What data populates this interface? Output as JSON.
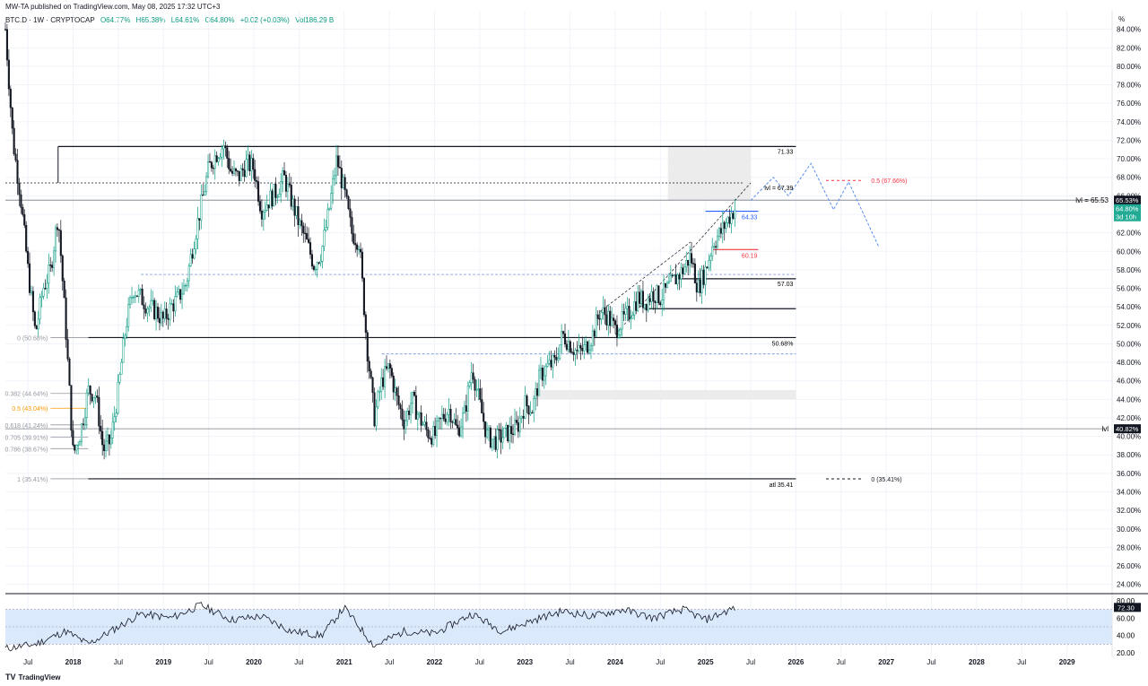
{
  "header": {
    "published": "MW-TA published on TradingView.com, May 08, 2025 17:32 UTC+3"
  },
  "legend": {
    "symbol": "BTC.D · 1W · CRYPTOCAP",
    "open": "O64.77%",
    "high": "H65.38%",
    "low": "L64.61%",
    "close": "C64.80%",
    "change": "+0.02 (+0.03%)",
    "volume": "Vol186.29 B"
  },
  "footer": {
    "brand": "TradingView",
    "logo": "TV"
  },
  "colors": {
    "up": "#089981",
    "down": "#131722",
    "level": "#131722",
    "fib": "#787b86",
    "blue_line": "#2962ff",
    "red_line": "#f23645",
    "rsi_band": "#dbe9fd",
    "rsi_line": "#131722",
    "price_badge": "#22ab94"
  },
  "price_scale": {
    "unit_label": "%",
    "labels": [
      "84.00%",
      "82.00%",
      "80.00%",
      "78.00%",
      "76.00%",
      "74.00%",
      "72.00%",
      "70.00%",
      "68.00%",
      "66.00%",
      "64.00%",
      "62.00%",
      "60.00%",
      "58.00%",
      "56.00%",
      "54.00%",
      "52.00%",
      "50.00%",
      "48.00%",
      "46.00%",
      "44.00%",
      "42.00%",
      "40.00%",
      "38.00%",
      "36.00%",
      "34.00%",
      "32.00%",
      "30.00%",
      "28.00%",
      "26.00%",
      "24.00%"
    ],
    "badge_current_level": "65.53%",
    "badge_price": "64.80%",
    "badge_countdown": "3d 10h",
    "badge_lvl": "40.82%"
  },
  "time_axis": {
    "labels": [
      "Jul",
      "2018",
      "Jul",
      "2019",
      "Jul",
      "2020",
      "Jul",
      "2021",
      "Jul",
      "2022",
      "Jul",
      "2023",
      "Jul",
      "2024",
      "Jul",
      "2025",
      "Jul",
      "2026",
      "Jul",
      "2027",
      "Jul",
      "2028",
      "Jul",
      "2029"
    ]
  },
  "annotations": {
    "lvl_top": "lvl = 65.53",
    "lvl_bottom": "lvl",
    "lvl_6739": "lvl = 67.39",
    "level_7133": "71.33",
    "level_5703": "57.03",
    "level_5068": "50.68%",
    "level_atl": "atl 35.41",
    "blue_6433": "64.33",
    "red_6019": "60.19",
    "fib_05_right": "0.5 (67.66%)",
    "fib_0_right": "0 (35.41%)",
    "fib_left": [
      "0 (50.68%)",
      "0.382 (44.64%)",
      "0.5 (43.04%)",
      "0.618 (41.24%)",
      "0.705 (39.91%)",
      "0.786 (38.67%)",
      "1 (35.41%)"
    ]
  },
  "rsi": {
    "labels": [
      "80.00",
      "60.00",
      "40.00",
      "20.00"
    ],
    "current": "72.30",
    "band": [
      30,
      70
    ]
  },
  "chart_data": {
    "type": "candlestick",
    "symbol": "BTC.D",
    "timeframe": "1W",
    "ylim": [
      23,
      86
    ],
    "yscale": "linear",
    "x_range": [
      "2017-04",
      "2029-06"
    ],
    "weekly_close_anchors": [
      {
        "date": "2017-04",
        "value": 84.0
      },
      {
        "date": "2017-05",
        "value": 72.0
      },
      {
        "date": "2017-06",
        "value": 66.0
      },
      {
        "date": "2017-07",
        "value": 58.0
      },
      {
        "date": "2017-08",
        "value": 51.0
      },
      {
        "date": "2017-09",
        "value": 56.0
      },
      {
        "date": "2017-10",
        "value": 58.0
      },
      {
        "date": "2017-11",
        "value": 64.0
      },
      {
        "date": "2017-12",
        "value": 52.0
      },
      {
        "date": "2018-01",
        "value": 38.0
      },
      {
        "date": "2018-02",
        "value": 40.5
      },
      {
        "date": "2018-03",
        "value": 45.0
      },
      {
        "date": "2018-04",
        "value": 44.5
      },
      {
        "date": "2018-05",
        "value": 38.5
      },
      {
        "date": "2018-06",
        "value": 39.5
      },
      {
        "date": "2018-07",
        "value": 45.0
      },
      {
        "date": "2018-08",
        "value": 52.0
      },
      {
        "date": "2018-09",
        "value": 56.0
      },
      {
        "date": "2018-10",
        "value": 55.0
      },
      {
        "date": "2018-11",
        "value": 54.0
      },
      {
        "date": "2018-12",
        "value": 53.5
      },
      {
        "date": "2019-01",
        "value": 52.5
      },
      {
        "date": "2019-02",
        "value": 54.0
      },
      {
        "date": "2019-03",
        "value": 55.0
      },
      {
        "date": "2019-04",
        "value": 56.5
      },
      {
        "date": "2019-05",
        "value": 61.0
      },
      {
        "date": "2019-06",
        "value": 65.0
      },
      {
        "date": "2019-07",
        "value": 69.0
      },
      {
        "date": "2019-08",
        "value": 70.5
      },
      {
        "date": "2019-09",
        "value": 71.5
      },
      {
        "date": "2019-10",
        "value": 68.5
      },
      {
        "date": "2019-11",
        "value": 68.0
      },
      {
        "date": "2019-12",
        "value": 69.5
      },
      {
        "date": "2020-01",
        "value": 69.0
      },
      {
        "date": "2020-02",
        "value": 64.5
      },
      {
        "date": "2020-03",
        "value": 65.5
      },
      {
        "date": "2020-04",
        "value": 66.5
      },
      {
        "date": "2020-05",
        "value": 68.0
      },
      {
        "date": "2020-06",
        "value": 65.5
      },
      {
        "date": "2020-07",
        "value": 63.0
      },
      {
        "date": "2020-08",
        "value": 61.0
      },
      {
        "date": "2020-09",
        "value": 58.5
      },
      {
        "date": "2020-10",
        "value": 60.0
      },
      {
        "date": "2020-11",
        "value": 64.5
      },
      {
        "date": "2020-12",
        "value": 70.0
      },
      {
        "date": "2021-01",
        "value": 66.5
      },
      {
        "date": "2021-02",
        "value": 62.0
      },
      {
        "date": "2021-03",
        "value": 61.0
      },
      {
        "date": "2021-04",
        "value": 50.0
      },
      {
        "date": "2021-05",
        "value": 42.0
      },
      {
        "date": "2021-06",
        "value": 46.0
      },
      {
        "date": "2021-07",
        "value": 47.5
      },
      {
        "date": "2021-08",
        "value": 44.0
      },
      {
        "date": "2021-09",
        "value": 41.5
      },
      {
        "date": "2021-10",
        "value": 44.0
      },
      {
        "date": "2021-11",
        "value": 42.0
      },
      {
        "date": "2021-12",
        "value": 40.5
      },
      {
        "date": "2022-01",
        "value": 40.0
      },
      {
        "date": "2022-02",
        "value": 42.0
      },
      {
        "date": "2022-03",
        "value": 43.0
      },
      {
        "date": "2022-04",
        "value": 40.5
      },
      {
        "date": "2022-05",
        "value": 42.5
      },
      {
        "date": "2022-06",
        "value": 47.5
      },
      {
        "date": "2022-07",
        "value": 43.5
      },
      {
        "date": "2022-08",
        "value": 40.0
      },
      {
        "date": "2022-09",
        "value": 39.5
      },
      {
        "date": "2022-10",
        "value": 40.0
      },
      {
        "date": "2022-11",
        "value": 40.5
      },
      {
        "date": "2022-12",
        "value": 41.0
      },
      {
        "date": "2023-01",
        "value": 43.5
      },
      {
        "date": "2023-02",
        "value": 43.0
      },
      {
        "date": "2023-03",
        "value": 46.5
      },
      {
        "date": "2023-04",
        "value": 47.5
      },
      {
        "date": "2023-05",
        "value": 48.0
      },
      {
        "date": "2023-06",
        "value": 51.0
      },
      {
        "date": "2023-07",
        "value": 50.0
      },
      {
        "date": "2023-08",
        "value": 49.0
      },
      {
        "date": "2023-09",
        "value": 49.5
      },
      {
        "date": "2023-10",
        "value": 51.0
      },
      {
        "date": "2023-11",
        "value": 53.5
      },
      {
        "date": "2023-12",
        "value": 53.0
      },
      {
        "date": "2024-01",
        "value": 51.5
      },
      {
        "date": "2024-02",
        "value": 52.5
      },
      {
        "date": "2024-03",
        "value": 53.5
      },
      {
        "date": "2024-04",
        "value": 55.0
      },
      {
        "date": "2024-05",
        "value": 54.5
      },
      {
        "date": "2024-06",
        "value": 55.5
      },
      {
        "date": "2024-07",
        "value": 55.0
      },
      {
        "date": "2024-08",
        "value": 56.0
      },
      {
        "date": "2024-09",
        "value": 57.0
      },
      {
        "date": "2024-10",
        "value": 58.0
      },
      {
        "date": "2024-11",
        "value": 59.5
      },
      {
        "date": "2024-12",
        "value": 56.0
      },
      {
        "date": "2025-01",
        "value": 58.0
      },
      {
        "date": "2025-02",
        "value": 61.0
      },
      {
        "date": "2025-03",
        "value": 62.0
      },
      {
        "date": "2025-04",
        "value": 63.5
      },
      {
        "date": "2025-05",
        "value": 64.8
      }
    ],
    "horizontal_levels": [
      {
        "label": "71.33",
        "value": 71.33,
        "from": "2017-11",
        "to": "2026-01"
      },
      {
        "label": "lvl = 67.39",
        "value": 67.39,
        "from": "2017-04",
        "to": "2025-06",
        "style": "dotted"
      },
      {
        "label": "lvl = 65.53",
        "value": 65.53,
        "from": "2017-04",
        "to": "2029-06"
      },
      {
        "label": "64.33",
        "value": 64.33,
        "from": "2025-01",
        "to": "2025-08",
        "color": "blue"
      },
      {
        "label": "60.19",
        "value": 60.19,
        "from": "2025-02",
        "to": "2025-08",
        "color": "red"
      },
      {
        "label": "57.03",
        "value": 57.03,
        "from": "2024-09",
        "to": "2026-01"
      },
      {
        "label": "",
        "value": 53.8,
        "from": "2024-05",
        "to": "2026-01"
      },
      {
        "label": "50.68%",
        "value": 50.68,
        "from": "2018-03",
        "to": "2026-01"
      },
      {
        "label": "lvl",
        "value": 40.82,
        "from": "2017-04",
        "to": "2029-06"
      },
      {
        "label": "atl 35.41",
        "value": 35.41,
        "from": "2018-03",
        "to": "2026-01"
      }
    ],
    "fib_levels": [
      {
        "label": "0 (50.68%)",
        "value": 50.68
      },
      {
        "label": "0.382 (44.64%)",
        "value": 44.64
      },
      {
        "label": "0.5 (43.04%)",
        "value": 43.04
      },
      {
        "label": "0.618 (41.24%)",
        "value": 41.24
      },
      {
        "label": "0.705 (39.91%)",
        "value": 39.91
      },
      {
        "label": "0.786 (38.67%)",
        "value": 38.67
      },
      {
        "label": "1 (35.41%)",
        "value": 35.41
      }
    ],
    "projection_path": [
      {
        "date": "2025-07",
        "value": 65.5
      },
      {
        "date": "2025-10",
        "value": 68.0
      },
      {
        "date": "2025-12",
        "value": 66.0
      },
      {
        "date": "2026-03",
        "value": 69.5
      },
      {
        "date": "2026-06",
        "value": 64.5
      },
      {
        "date": "2026-08",
        "value": 67.5
      },
      {
        "date": "2026-10",
        "value": 64.0
      },
      {
        "date": "2026-12",
        "value": 60.5
      }
    ],
    "rsi_series": [
      {
        "date": "2017-04",
        "value": 25
      },
      {
        "date": "2017-08",
        "value": 30
      },
      {
        "date": "2017-12",
        "value": 45
      },
      {
        "date": "2018-03",
        "value": 30
      },
      {
        "date": "2018-06",
        "value": 45
      },
      {
        "date": "2018-10",
        "value": 65
      },
      {
        "date": "2019-02",
        "value": 60
      },
      {
        "date": "2019-06",
        "value": 75
      },
      {
        "date": "2019-10",
        "value": 58
      },
      {
        "date": "2020-02",
        "value": 62
      },
      {
        "date": "2020-06",
        "value": 45
      },
      {
        "date": "2020-10",
        "value": 40
      },
      {
        "date": "2021-01",
        "value": 72
      },
      {
        "date": "2021-05",
        "value": 28
      },
      {
        "date": "2021-09",
        "value": 45
      },
      {
        "date": "2022-01",
        "value": 42
      },
      {
        "date": "2022-06",
        "value": 65
      },
      {
        "date": "2022-10",
        "value": 45
      },
      {
        "date": "2023-03",
        "value": 60
      },
      {
        "date": "2023-06",
        "value": 68
      },
      {
        "date": "2023-10",
        "value": 62
      },
      {
        "date": "2024-02",
        "value": 70
      },
      {
        "date": "2024-06",
        "value": 60
      },
      {
        "date": "2024-10",
        "value": 70
      },
      {
        "date": "2025-01",
        "value": 58
      },
      {
        "date": "2025-03",
        "value": 65
      },
      {
        "date": "2025-05",
        "value": 72.3
      }
    ]
  }
}
